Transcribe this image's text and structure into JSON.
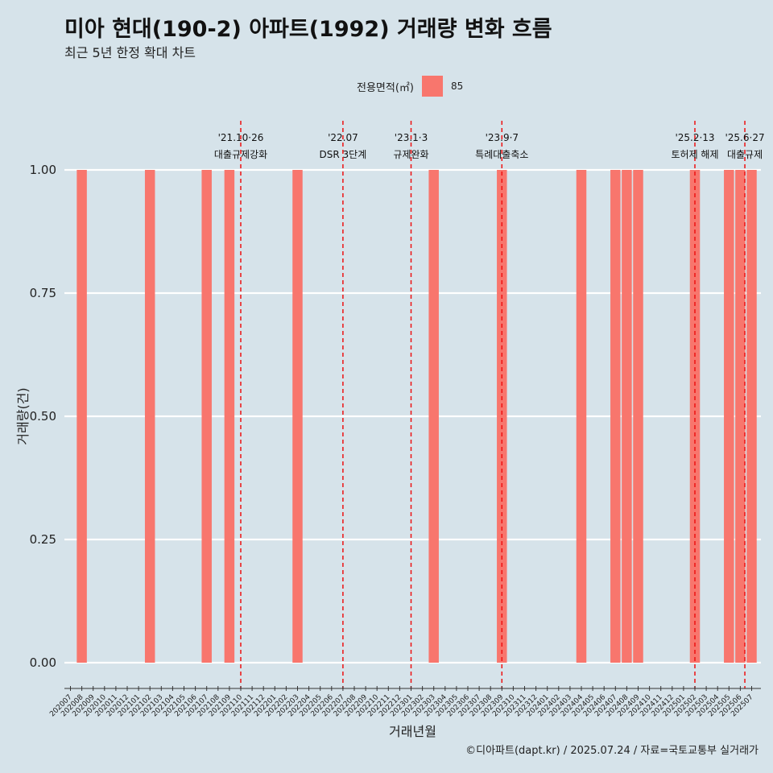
{
  "title": "미아 현대(190-2) 아파트(1992) 거래량 변화 흐름",
  "subtitle": "최근 5년 한정 확대 차트",
  "caption": "©디아파트(dapt.kr) / 2025.07.24 / 자료=국토교통부 실거래가",
  "legend": {
    "title": "전용면적(㎡)",
    "items": [
      {
        "label": "85",
        "color": "#f8766d"
      }
    ]
  },
  "chart_data": {
    "type": "bar",
    "title": "미아 현대(190-2) 아파트(1992) 거래량 변화 흐름",
    "subtitle": "최근 5년 한정 확대 차트",
    "xlabel": "거래년월",
    "ylabel": "거래량(건)",
    "ylim": [
      0,
      1
    ],
    "yticks": [
      "0.00",
      "0.25",
      "0.50",
      "0.75",
      "1.00"
    ],
    "categories": [
      "202007",
      "202008",
      "202009",
      "202010",
      "202011",
      "202012",
      "202101",
      "202102",
      "202103",
      "202104",
      "202105",
      "202106",
      "202107",
      "202108",
      "202109",
      "202110",
      "202111",
      "202112",
      "202201",
      "202202",
      "202203",
      "202204",
      "202205",
      "202206",
      "202207",
      "202208",
      "202209",
      "202210",
      "202211",
      "202212",
      "202301",
      "202302",
      "202303",
      "202304",
      "202305",
      "202306",
      "202307",
      "202308",
      "202309",
      "202310",
      "202311",
      "202312",
      "202401",
      "202402",
      "202403",
      "202404",
      "202405",
      "202406",
      "202407",
      "202408",
      "202409",
      "202410",
      "202411",
      "202412",
      "202501",
      "202502",
      "202503",
      "202504",
      "202505",
      "202506",
      "202507"
    ],
    "series": [
      {
        "name": "85",
        "color": "#f8766d",
        "points": [
          {
            "x": "202008",
            "y": 1
          },
          {
            "x": "202102",
            "y": 1
          },
          {
            "x": "202107",
            "y": 1
          },
          {
            "x": "202109",
            "y": 1
          },
          {
            "x": "202203",
            "y": 1
          },
          {
            "x": "202303",
            "y": 1
          },
          {
            "x": "202309",
            "y": 1
          },
          {
            "x": "202404",
            "y": 1
          },
          {
            "x": "202407",
            "y": 1
          },
          {
            "x": "202408",
            "y": 1
          },
          {
            "x": "202409",
            "y": 1
          },
          {
            "x": "202502",
            "y": 1
          },
          {
            "x": "202505",
            "y": 1
          },
          {
            "x": "202506",
            "y": 1
          },
          {
            "x": "202507",
            "y": 1
          }
        ]
      }
    ],
    "annotations": [
      {
        "x": "202110",
        "offset": 0.0,
        "date": "'21.10·26",
        "label": "대출규제강화"
      },
      {
        "x": "202207",
        "offset": 0.0,
        "date": "'22.07",
        "label": "DSR 3단계"
      },
      {
        "x": "202301",
        "offset": 0.0,
        "date": "'23.1·3",
        "label": "규제완화"
      },
      {
        "x": "202309",
        "offset": 0.0,
        "date": "'23.9·7",
        "label": "특례대출축소"
      },
      {
        "x": "202502",
        "offset": 0.0,
        "date": "'25.2·13",
        "label": "토허제 해제"
      },
      {
        "x": "202506",
        "offset": 0.4,
        "date": "'25.6·27",
        "label": "대출규제"
      }
    ],
    "grid": true,
    "legend_position": "top"
  }
}
